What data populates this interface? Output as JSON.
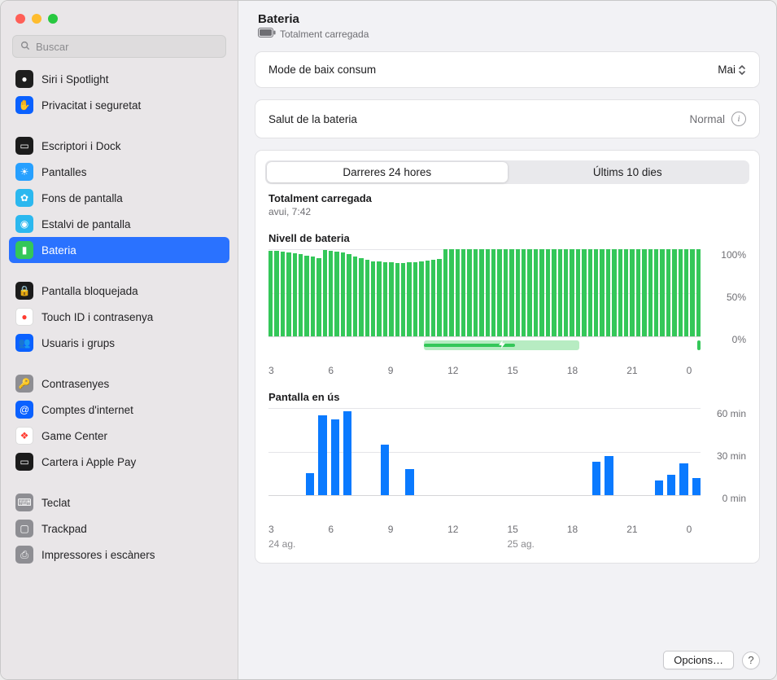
{
  "traffic_lights": [
    "#ff5f57",
    "#febc2e",
    "#28c840"
  ],
  "search": {
    "placeholder": "Buscar"
  },
  "sidebar": {
    "groups": [
      [
        {
          "label": "Siri i Spotlight",
          "bg": "#1e1e1e",
          "glyph": "●"
        },
        {
          "label": "Privacitat i seguretat",
          "bg": "#0a61ff",
          "glyph": "✋"
        }
      ],
      [
        {
          "label": "Escriptori i Dock",
          "bg": "#1b1b1b",
          "glyph": "▭"
        },
        {
          "label": "Pantalles",
          "bg": "#27a0ff",
          "glyph": "☀"
        },
        {
          "label": "Fons de pantalla",
          "bg": "#2bb8ef",
          "glyph": "✿"
        },
        {
          "label": "Estalvi de pantalla",
          "bg": "#2bb8ef",
          "glyph": "◉"
        },
        {
          "label": "Bateria",
          "bg": "#34c759",
          "glyph": "▮",
          "selected": true
        }
      ],
      [
        {
          "label": "Pantalla bloquejada",
          "bg": "#1b1b1b",
          "glyph": "🔒"
        },
        {
          "label": "Touch ID i contrasenya",
          "bg": "#ffffff",
          "glyph": "●",
          "glyphColor": "#ff3b30",
          "border": "#dddddd"
        },
        {
          "label": "Usuaris i grups",
          "bg": "#0a61ff",
          "glyph": "👥"
        }
      ],
      [
        {
          "label": "Contrasenyes",
          "bg": "#8e8e93",
          "glyph": "🔑"
        },
        {
          "label": "Comptes d'internet",
          "bg": "#0a61ff",
          "glyph": "@"
        },
        {
          "label": "Game Center",
          "bg": "#ffffff",
          "glyph": "❖",
          "glyphColor": "#ff3b30",
          "border": "#dddddd"
        },
        {
          "label": "Cartera i Apple Pay",
          "bg": "#1b1b1b",
          "glyph": "▭"
        }
      ],
      [
        {
          "label": "Teclat",
          "bg": "#8e8e93",
          "glyph": "⌨"
        },
        {
          "label": "Trackpad",
          "bg": "#8e8e93",
          "glyph": "▢"
        },
        {
          "label": "Impressores i escàners",
          "bg": "#8e8e93",
          "glyph": "⎙"
        }
      ]
    ]
  },
  "header": {
    "title": "Bateria",
    "status": "Totalment carregada"
  },
  "lowPower": {
    "label": "Mode de baix consum",
    "value": "Mai"
  },
  "health": {
    "label": "Salut de la bateria",
    "value": "Normal"
  },
  "tabs": {
    "a": "Darreres 24 hores",
    "b": "Últims 10 dies"
  },
  "chargeStatus": {
    "title": "Totalment carregada",
    "sub": "avui, 7:42"
  },
  "batteryLevel": {
    "title": "Nivell de bateria",
    "color": "#34c759",
    "yticks": [
      "100%",
      "50%",
      "0%"
    ],
    "xticks": [
      "3",
      "6",
      "9",
      "12",
      "15",
      "18",
      "21",
      "0"
    ],
    "values": [
      98,
      98,
      97,
      96,
      95,
      94,
      93,
      92,
      90,
      99,
      98,
      97,
      96,
      94,
      92,
      90,
      88,
      86,
      86,
      85,
      85,
      84,
      84,
      85,
      85,
      86,
      87,
      88,
      89,
      100,
      100,
      100,
      100,
      100,
      100,
      100,
      100,
      100,
      100,
      100,
      100,
      100,
      100,
      100,
      100,
      100,
      100,
      100,
      100,
      100,
      100,
      100,
      100,
      100,
      100,
      100,
      100,
      100,
      100,
      100,
      100,
      100,
      100,
      100,
      100,
      100,
      100,
      100,
      100,
      100,
      100,
      100
    ],
    "chargeStrip": {
      "bgColor": "#b7ecc2",
      "fgColor": "#34c759",
      "startPct": 36,
      "widthPct": 36,
      "innerStartPct": 36,
      "innerWidthPct": 21
    },
    "tailMarker": {
      "color": "#34c759"
    }
  },
  "screenOn": {
    "title": "Pantalla en ús",
    "color": "#0a7aff",
    "yticks": [
      "60 min",
      "30 min",
      "0 min"
    ],
    "xticks": [
      "3",
      "6",
      "9",
      "12",
      "15",
      "18",
      "21",
      "0"
    ],
    "dayLabels": [
      "24 ag.",
      "25 ag."
    ],
    "values": [
      0,
      0,
      0,
      15,
      55,
      52,
      58,
      0,
      0,
      35,
      0,
      18,
      0,
      0,
      0,
      0,
      0,
      0,
      0,
      0,
      0,
      0,
      0,
      0,
      0,
      0,
      23,
      27,
      0,
      0,
      0,
      10,
      14,
      22,
      12
    ]
  },
  "footer": {
    "options": "Opcions…"
  }
}
